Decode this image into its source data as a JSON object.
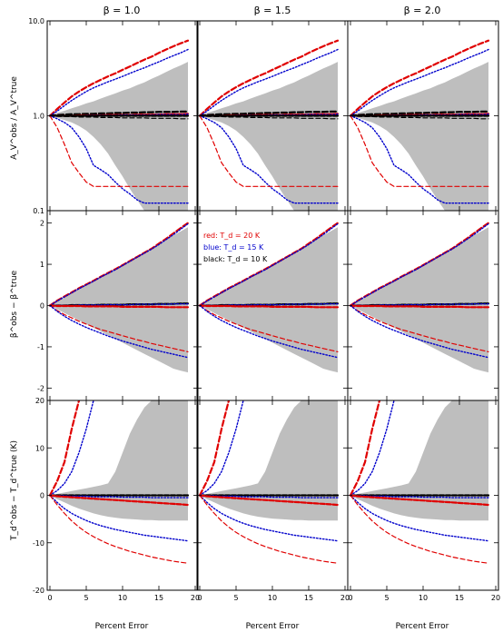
{
  "figure": {
    "column_titles": [
      "β = 1.0",
      "β = 1.5",
      "β = 2.0"
    ],
    "x_label": "Percent Error",
    "row_y_labels": [
      "A_V^obs / A_V^true",
      "β^obs − β^true",
      "T_d^obs − T_d^true (K)"
    ],
    "legend": [
      {
        "text": "red: T_d = 20 K",
        "color": "#e00000"
      },
      {
        "text": "blue: T_d = 15 K",
        "color": "#0000cc"
      },
      {
        "text": "black: T_d = 10 K",
        "color": "#000000"
      }
    ]
  },
  "chart_data": {
    "type": "line",
    "layout": "3x3 grid of panels",
    "x": [
      0,
      1,
      2,
      3,
      4,
      5,
      6,
      7,
      8,
      9,
      10,
      11,
      12,
      13,
      14,
      15,
      16,
      17,
      18,
      19
    ],
    "xlim": [
      0,
      20
    ],
    "xticks": [
      0,
      5,
      10,
      15,
      20
    ],
    "xlabel": "Percent Error",
    "columns": [
      "β = 1.0",
      "β = 1.5",
      "β = 2.0"
    ],
    "colors": {
      "red": "#e00000",
      "blue": "#0000cc",
      "black": "#000000",
      "band": "#bebebe"
    },
    "rows": [
      {
        "ylabel": "A_V^obs / A_V^true",
        "yscale": "log",
        "ylim": [
          0.1,
          10
        ],
        "yticks": [
          0.1,
          1.0,
          10.0
        ],
        "yticklabels": [
          "0.1",
          "1.0",
          "10.0"
        ],
        "band_upper": [
          1.0,
          1.07,
          1.13,
          1.2,
          1.27,
          1.35,
          1.42,
          1.52,
          1.62,
          1.72,
          1.84,
          1.95,
          2.1,
          2.25,
          2.45,
          2.65,
          2.9,
          3.15,
          3.4,
          3.7
        ],
        "band_lower": [
          1.0,
          0.95,
          0.9,
          0.85,
          0.78,
          0.7,
          0.6,
          0.5,
          0.4,
          0.3,
          0.23,
          0.17,
          0.13,
          0.1,
          0.1,
          0.1,
          0.1,
          0.1,
          0.1,
          0.1
        ],
        "series": [
          {
            "color": "red",
            "bound": "upper",
            "values": [
              1.0,
              1.18,
              1.38,
              1.6,
              1.8,
              2.0,
              2.2,
              2.4,
              2.6,
              2.8,
              3.05,
              3.3,
              3.6,
              3.9,
              4.2,
              4.6,
              5.0,
              5.4,
              5.8,
              6.2
            ]
          },
          {
            "color": "blue",
            "bound": "upper",
            "values": [
              1.0,
              1.12,
              1.28,
              1.45,
              1.62,
              1.8,
              1.97,
              2.12,
              2.28,
              2.43,
              2.6,
              2.8,
              3.0,
              3.2,
              3.45,
              3.7,
              4.0,
              4.3,
              4.6,
              5.0
            ]
          },
          {
            "color": "black",
            "bound": "upper",
            "values": [
              1.0,
              1.02,
              1.03,
              1.04,
              1.04,
              1.05,
              1.05,
              1.06,
              1.06,
              1.07,
              1.07,
              1.08,
              1.08,
              1.09,
              1.09,
              1.1,
              1.1,
              1.1,
              1.11,
              1.11
            ]
          },
          {
            "color": "red",
            "bound": "median",
            "values": [
              1.0,
              1.0,
              1.0,
              1.0,
              1.01,
              1.01,
              1.01,
              1.01,
              1.02,
              1.02,
              1.02,
              1.02,
              1.03,
              1.03,
              1.03,
              1.03,
              1.04,
              1.04,
              1.04,
              1.05
            ]
          },
          {
            "color": "blue",
            "bound": "median",
            "values": [
              1.0,
              1.0,
              1.0,
              1.0,
              1.0,
              1.01,
              1.01,
              1.01,
              1.01,
              1.01,
              1.02,
              1.02,
              1.02,
              1.02,
              1.02,
              1.03,
              1.03,
              1.03,
              1.03,
              1.04
            ]
          },
          {
            "color": "black",
            "bound": "median",
            "values": [
              1.0,
              1.0,
              1.0,
              1.0,
              1.0,
              1.0,
              1.0,
              1.0,
              1.0,
              1.0,
              1.0,
              1.0,
              1.0,
              1.0,
              1.0,
              1.0,
              1.0,
              1.0,
              1.0,
              1.0
            ]
          },
          {
            "color": "black",
            "bound": "lower",
            "values": [
              1.0,
              0.99,
              0.98,
              0.98,
              0.97,
              0.97,
              0.97,
              0.96,
              0.96,
              0.96,
              0.95,
              0.95,
              0.95,
              0.95,
              0.94,
              0.94,
              0.94,
              0.94,
              0.93,
              0.93
            ]
          },
          {
            "color": "blue",
            "bound": "lower",
            "values": [
              1.0,
              0.93,
              0.85,
              0.75,
              0.6,
              0.45,
              0.3,
              0.27,
              0.24,
              0.2,
              0.17,
              0.15,
              0.13,
              0.12,
              0.12,
              0.12,
              0.12,
              0.12,
              0.12,
              0.12
            ]
          },
          {
            "color": "red",
            "bound": "lower",
            "values": [
              1.0,
              0.75,
              0.5,
              0.32,
              0.25,
              0.2,
              0.18,
              0.18,
              0.18,
              0.18,
              0.18,
              0.18,
              0.18,
              0.18,
              0.18,
              0.18,
              0.18,
              0.18,
              0.18,
              0.18
            ]
          }
        ]
      },
      {
        "ylabel": "β^obs − β^true",
        "yscale": "linear",
        "ylim": [
          -2.3,
          2.3
        ],
        "yticks": [
          -2,
          -1,
          0,
          1,
          2
        ],
        "yticklabels": [
          "-2",
          "-1",
          "0",
          "1",
          "2"
        ],
        "band_upper": [
          0.0,
          0.1,
          0.2,
          0.3,
          0.4,
          0.5,
          0.6,
          0.7,
          0.8,
          0.9,
          1.0,
          1.1,
          1.2,
          1.3,
          1.4,
          1.5,
          1.6,
          1.7,
          1.8,
          1.9
        ],
        "band_lower": [
          0.0,
          -0.09,
          -0.18,
          -0.27,
          -0.36,
          -0.45,
          -0.54,
          -0.63,
          -0.72,
          -0.81,
          -0.9,
          -0.99,
          -1.08,
          -1.17,
          -1.26,
          -1.35,
          -1.44,
          -1.53,
          -1.58,
          -1.62
        ],
        "series": [
          {
            "color": "red",
            "bound": "upper",
            "values": [
              0.0,
              0.12,
              0.22,
              0.32,
              0.42,
              0.51,
              0.6,
              0.7,
              0.79,
              0.88,
              0.98,
              1.08,
              1.18,
              1.28,
              1.38,
              1.5,
              1.62,
              1.75,
              1.88,
              2.0
            ]
          },
          {
            "color": "blue",
            "bound": "upper",
            "values": [
              0.0,
              0.11,
              0.21,
              0.31,
              0.41,
              0.5,
              0.59,
              0.69,
              0.78,
              0.87,
              0.97,
              1.07,
              1.17,
              1.27,
              1.37,
              1.48,
              1.6,
              1.72,
              1.85,
              1.98
            ]
          },
          {
            "color": "black",
            "bound": "median",
            "values": [
              0.0,
              0.0,
              0.0,
              0.01,
              0.01,
              0.01,
              0.01,
              0.02,
              0.02,
              0.02,
              0.02,
              0.03,
              0.03,
              0.03,
              0.03,
              0.04,
              0.04,
              0.04,
              0.05,
              0.05
            ]
          },
          {
            "color": "blue",
            "bound": "median",
            "values": [
              0.0,
              0.0,
              0.0,
              0.0,
              0.01,
              0.01,
              0.01,
              0.01,
              0.02,
              0.02,
              0.02,
              0.02,
              0.03,
              0.03,
              0.03,
              0.03,
              0.03,
              0.04,
              0.04,
              0.04
            ]
          },
          {
            "color": "red",
            "bound": "median",
            "values": [
              0.0,
              -0.01,
              -0.01,
              -0.01,
              -0.01,
              -0.02,
              -0.02,
              -0.02,
              -0.02,
              -0.02,
              -0.03,
              -0.03,
              -0.03,
              -0.03,
              -0.03,
              -0.03,
              -0.04,
              -0.04,
              -0.04,
              -0.04
            ]
          },
          {
            "color": "red",
            "bound": "lower",
            "values": [
              0.0,
              -0.12,
              -0.22,
              -0.3,
              -0.38,
              -0.45,
              -0.52,
              -0.58,
              -0.63,
              -0.68,
              -0.73,
              -0.78,
              -0.83,
              -0.87,
              -0.92,
              -0.96,
              -1.0,
              -1.04,
              -1.08,
              -1.12
            ]
          },
          {
            "color": "blue",
            "bound": "lower",
            "values": [
              0.0,
              -0.14,
              -0.26,
              -0.36,
              -0.45,
              -0.53,
              -0.6,
              -0.67,
              -0.74,
              -0.8,
              -0.86,
              -0.91,
              -0.96,
              -1.01,
              -1.06,
              -1.1,
              -1.14,
              -1.18,
              -1.22,
              -1.26
            ]
          }
        ]
      },
      {
        "ylabel": "T_d^obs − T_d^true (K)",
        "yscale": "linear",
        "ylim": [
          -20,
          20
        ],
        "yticks": [
          -20,
          -10,
          0,
          10,
          20
        ],
        "yticklabels": [
          "-20",
          "-10",
          "0",
          "10",
          "20"
        ],
        "band_upper": [
          0.0,
          0.3,
          0.6,
          0.9,
          1.2,
          1.5,
          1.8,
          2.1,
          2.5,
          5.0,
          9.0,
          13.0,
          16.0,
          18.5,
          20.0,
          20.0,
          20.0,
          20.0,
          20.0,
          20.0
        ],
        "band_lower": [
          0.0,
          -0.8,
          -1.5,
          -2.2,
          -2.8,
          -3.3,
          -3.8,
          -4.2,
          -4.5,
          -4.7,
          -4.9,
          -5.0,
          -5.1,
          -5.2,
          -5.2,
          -5.3,
          -5.3,
          -5.3,
          -5.3,
          -5.3
        ],
        "series": [
          {
            "color": "red",
            "bound": "upper",
            "values": [
              0.0,
              3.0,
              7.0,
              14.0,
              20.0,
              null,
              null,
              null,
              null,
              null,
              null,
              null,
              null,
              null,
              null,
              null,
              null,
              null,
              null,
              null
            ]
          },
          {
            "color": "blue",
            "bound": "upper",
            "values": [
              0.0,
              1.0,
              2.5,
              5.0,
              9.0,
              14.0,
              20.0,
              null,
              null,
              null,
              null,
              null,
              null,
              null,
              null,
              null,
              null,
              null,
              null,
              null
            ]
          },
          {
            "color": "black",
            "bound": "median",
            "values": [
              0.0,
              0.0,
              0.0,
              0.0,
              0.0,
              0.0,
              0.0,
              0.0,
              0.0,
              0.0,
              0.0,
              0.0,
              0.0,
              0.0,
              0.0,
              0.0,
              0.0,
              0.0,
              0.0,
              0.0
            ]
          },
          {
            "color": "blue",
            "bound": "median",
            "values": [
              0.0,
              -0.1,
              -0.1,
              -0.2,
              -0.2,
              -0.2,
              -0.3,
              -0.3,
              -0.3,
              -0.3,
              -0.4,
              -0.4,
              -0.4,
              -0.4,
              -0.5,
              -0.5,
              -0.5,
              -0.5,
              -0.5,
              -0.5
            ]
          },
          {
            "color": "red",
            "bound": "median",
            "values": [
              0.0,
              -0.2,
              -0.3,
              -0.4,
              -0.5,
              -0.6,
              -0.7,
              -0.8,
              -0.9,
              -1.0,
              -1.1,
              -1.2,
              -1.3,
              -1.4,
              -1.5,
              -1.6,
              -1.7,
              -1.8,
              -1.9,
              -2.0
            ]
          },
          {
            "color": "blue",
            "bound": "lower",
            "values": [
              0.0,
              -1.5,
              -2.8,
              -3.8,
              -4.6,
              -5.3,
              -5.9,
              -6.4,
              -6.8,
              -7.2,
              -7.5,
              -7.8,
              -8.1,
              -8.4,
              -8.6,
              -8.8,
              -9.0,
              -9.2,
              -9.4,
              -9.6
            ]
          },
          {
            "color": "red",
            "bound": "lower",
            "values": [
              0.0,
              -2.0,
              -3.8,
              -5.4,
              -6.7,
              -7.8,
              -8.7,
              -9.5,
              -10.2,
              -10.8,
              -11.3,
              -11.8,
              -12.2,
              -12.6,
              -13.0,
              -13.3,
              -13.6,
              -13.9,
              -14.1,
              -14.3
            ]
          }
        ]
      }
    ]
  }
}
